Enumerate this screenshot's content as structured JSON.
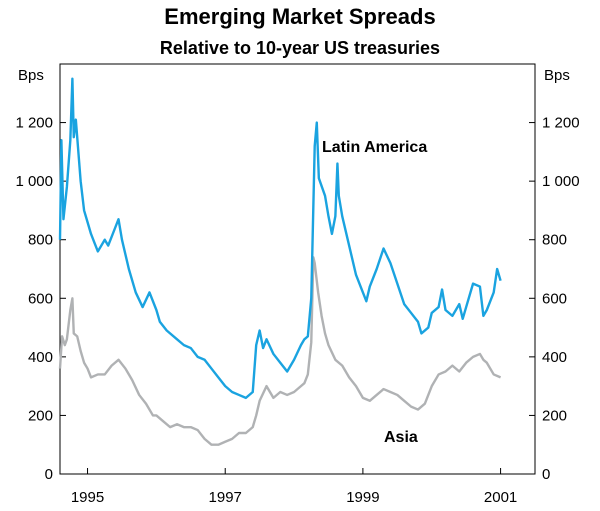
{
  "chart_data": {
    "type": "line",
    "title": "Emerging Market Spreads",
    "subtitle": "Relative to 10-year US treasuries",
    "y_unit_left": "Bps",
    "y_unit_right": "Bps",
    "ylim": [
      0,
      1400
    ],
    "yticks": [
      0,
      200,
      400,
      600,
      800,
      1000,
      1200
    ],
    "ytick_labels": [
      "0",
      "200",
      "400",
      "600",
      "800",
      "1 000",
      "1 200"
    ],
    "xlim": [
      1994.6,
      2001.5
    ],
    "xticks": [
      1995,
      1997,
      1999,
      2001
    ],
    "xtick_labels": [
      "1995",
      "1997",
      "1999",
      "2001"
    ],
    "colors": {
      "latin_america": "#1aa3e0",
      "asia": "#b0b2b4"
    },
    "series": [
      {
        "name": "Latin America",
        "key": "latin_america",
        "points": [
          [
            1994.6,
            800
          ],
          [
            1994.62,
            1140
          ],
          [
            1994.65,
            870
          ],
          [
            1994.7,
            980
          ],
          [
            1994.75,
            1140
          ],
          [
            1994.78,
            1350
          ],
          [
            1994.8,
            1150
          ],
          [
            1994.83,
            1210
          ],
          [
            1994.87,
            1090
          ],
          [
            1994.9,
            1000
          ],
          [
            1994.95,
            900
          ],
          [
            1995.0,
            860
          ],
          [
            1995.05,
            820
          ],
          [
            1995.1,
            790
          ],
          [
            1995.15,
            760
          ],
          [
            1995.25,
            800
          ],
          [
            1995.3,
            780
          ],
          [
            1995.35,
            810
          ],
          [
            1995.4,
            840
          ],
          [
            1995.45,
            870
          ],
          [
            1995.5,
            800
          ],
          [
            1995.6,
            700
          ],
          [
            1995.7,
            620
          ],
          [
            1995.8,
            570
          ],
          [
            1995.9,
            620
          ],
          [
            1996.0,
            560
          ],
          [
            1996.05,
            520
          ],
          [
            1996.15,
            490
          ],
          [
            1996.3,
            460
          ],
          [
            1996.4,
            440
          ],
          [
            1996.5,
            430
          ],
          [
            1996.6,
            400
          ],
          [
            1996.7,
            390
          ],
          [
            1996.8,
            360
          ],
          [
            1996.9,
            330
          ],
          [
            1997.0,
            300
          ],
          [
            1997.1,
            280
          ],
          [
            1997.2,
            270
          ],
          [
            1997.3,
            260
          ],
          [
            1997.4,
            280
          ],
          [
            1997.45,
            440
          ],
          [
            1997.5,
            490
          ],
          [
            1997.55,
            430
          ],
          [
            1997.6,
            460
          ],
          [
            1997.7,
            410
          ],
          [
            1997.8,
            380
          ],
          [
            1997.9,
            350
          ],
          [
            1998.0,
            390
          ],
          [
            1998.1,
            440
          ],
          [
            1998.15,
            460
          ],
          [
            1998.2,
            470
          ],
          [
            1998.25,
            600
          ],
          [
            1998.3,
            1120
          ],
          [
            1998.33,
            1200
          ],
          [
            1998.36,
            1010
          ],
          [
            1998.45,
            950
          ],
          [
            1998.5,
            880
          ],
          [
            1998.55,
            820
          ],
          [
            1998.6,
            880
          ],
          [
            1998.63,
            1060
          ],
          [
            1998.65,
            950
          ],
          [
            1998.7,
            880
          ],
          [
            1998.8,
            780
          ],
          [
            1998.9,
            680
          ],
          [
            1999.0,
            620
          ],
          [
            1999.05,
            590
          ],
          [
            1999.1,
            640
          ],
          [
            1999.2,
            700
          ],
          [
            1999.3,
            770
          ],
          [
            1999.4,
            720
          ],
          [
            1999.5,
            650
          ],
          [
            1999.6,
            580
          ],
          [
            1999.7,
            550
          ],
          [
            1999.8,
            520
          ],
          [
            1999.85,
            480
          ],
          [
            1999.95,
            500
          ],
          [
            2000.0,
            550
          ],
          [
            2000.1,
            570
          ],
          [
            2000.15,
            630
          ],
          [
            2000.2,
            560
          ],
          [
            2000.3,
            540
          ],
          [
            2000.4,
            580
          ],
          [
            2000.45,
            530
          ],
          [
            2000.5,
            570
          ],
          [
            2000.6,
            650
          ],
          [
            2000.7,
            640
          ],
          [
            2000.75,
            540
          ],
          [
            2000.8,
            560
          ],
          [
            2000.9,
            620
          ],
          [
            2000.95,
            700
          ],
          [
            2001.0,
            660
          ]
        ]
      },
      {
        "name": "Asia",
        "key": "asia",
        "points": [
          [
            1994.6,
            360
          ],
          [
            1994.63,
            470
          ],
          [
            1994.67,
            440
          ],
          [
            1994.7,
            460
          ],
          [
            1994.75,
            560
          ],
          [
            1994.78,
            600
          ],
          [
            1994.8,
            480
          ],
          [
            1994.85,
            470
          ],
          [
            1994.9,
            420
          ],
          [
            1994.95,
            380
          ],
          [
            1995.0,
            360
          ],
          [
            1995.05,
            330
          ],
          [
            1995.15,
            340
          ],
          [
            1995.25,
            340
          ],
          [
            1995.35,
            370
          ],
          [
            1995.45,
            390
          ],
          [
            1995.55,
            360
          ],
          [
            1995.65,
            320
          ],
          [
            1995.75,
            270
          ],
          [
            1995.85,
            240
          ],
          [
            1995.95,
            200
          ],
          [
            1996.0,
            200
          ],
          [
            1996.1,
            180
          ],
          [
            1996.2,
            160
          ],
          [
            1996.3,
            170
          ],
          [
            1996.4,
            160
          ],
          [
            1996.5,
            160
          ],
          [
            1996.6,
            150
          ],
          [
            1996.7,
            120
          ],
          [
            1996.8,
            100
          ],
          [
            1996.9,
            100
          ],
          [
            1997.0,
            110
          ],
          [
            1997.1,
            120
          ],
          [
            1997.2,
            140
          ],
          [
            1997.3,
            140
          ],
          [
            1997.4,
            160
          ],
          [
            1997.45,
            200
          ],
          [
            1997.5,
            250
          ],
          [
            1997.6,
            300
          ],
          [
            1997.7,
            260
          ],
          [
            1997.8,
            280
          ],
          [
            1997.9,
            270
          ],
          [
            1998.0,
            280
          ],
          [
            1998.1,
            300
          ],
          [
            1998.15,
            310
          ],
          [
            1998.2,
            340
          ],
          [
            1998.25,
            450
          ],
          [
            1998.28,
            740
          ],
          [
            1998.3,
            720
          ],
          [
            1998.35,
            620
          ],
          [
            1998.4,
            540
          ],
          [
            1998.45,
            480
          ],
          [
            1998.5,
            440
          ],
          [
            1998.6,
            390
          ],
          [
            1998.7,
            370
          ],
          [
            1998.8,
            330
          ],
          [
            1998.9,
            300
          ],
          [
            1999.0,
            260
          ],
          [
            1999.1,
            250
          ],
          [
            1999.2,
            270
          ],
          [
            1999.3,
            290
          ],
          [
            1999.4,
            280
          ],
          [
            1999.5,
            270
          ],
          [
            1999.6,
            250
          ],
          [
            1999.7,
            230
          ],
          [
            1999.8,
            220
          ],
          [
            1999.9,
            240
          ],
          [
            2000.0,
            300
          ],
          [
            2000.1,
            340
          ],
          [
            2000.2,
            350
          ],
          [
            2000.3,
            370
          ],
          [
            2000.4,
            350
          ],
          [
            2000.5,
            380
          ],
          [
            2000.6,
            400
          ],
          [
            2000.7,
            410
          ],
          [
            2000.75,
            390
          ],
          [
            2000.8,
            380
          ],
          [
            2000.9,
            340
          ],
          [
            2001.0,
            330
          ]
        ]
      }
    ],
    "annotations": [
      {
        "text": "Latin America",
        "series": "latin_america"
      },
      {
        "text": "Asia",
        "series": "asia"
      }
    ]
  }
}
